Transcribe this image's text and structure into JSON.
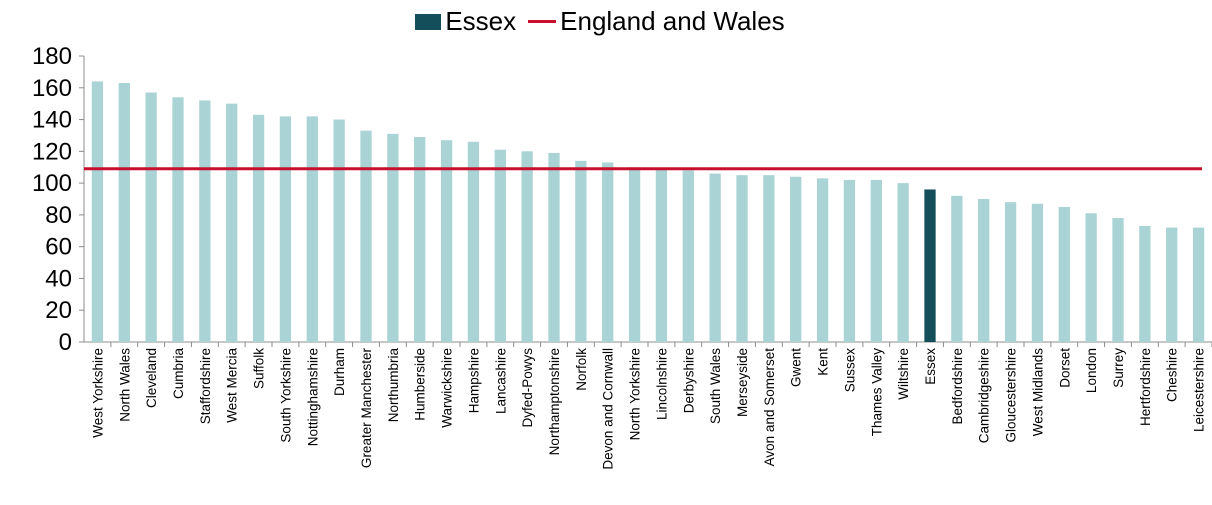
{
  "chart_data": {
    "type": "bar",
    "title": "",
    "xlabel": "",
    "ylabel": "",
    "ylim": [
      0,
      180
    ],
    "yticks": [
      0,
      20,
      40,
      60,
      80,
      100,
      120,
      140,
      160,
      180
    ],
    "grid": false,
    "legend_position": "top-center",
    "categories": [
      "West Yorkshire",
      "North Wales",
      "Cleveland",
      "Cumbria",
      "Staffordshire",
      "West Mercia",
      "Suffolk",
      "South Yorkshire",
      "Nottinghamshire",
      "Durham",
      "Greater Manchester",
      "Northumbria",
      "Humberside",
      "Warwickshire",
      "Hampshire",
      "Lancashire",
      "Dyfed-Powys",
      "Northamptonshire",
      "Norfolk",
      "Devon and Cornwall",
      "North Yorkshire",
      "Lincolnshire",
      "Derbyshire",
      "South Wales",
      "Merseyside",
      "Avon and Somerset",
      "Gwent",
      "Kent",
      "Sussex",
      "Thames Valley",
      "Wiltshire",
      "Essex",
      "Bedfordshire",
      "Cambridgeshire",
      "Gloucestershire",
      "West Midlands",
      "Dorset",
      "London",
      "Surrey",
      "Hertfordshire",
      "Cheshire",
      "Leicestershire"
    ],
    "values": [
      164,
      163,
      157,
      154,
      152,
      150,
      143,
      142,
      142,
      140,
      133,
      131,
      129,
      127,
      126,
      121,
      120,
      119,
      114,
      113,
      110,
      109,
      108,
      106,
      105,
      105,
      104,
      103,
      102,
      102,
      100,
      96,
      92,
      90,
      88,
      87,
      85,
      81,
      78,
      73,
      72,
      72
    ],
    "highlight": {
      "category": "Essex",
      "color": "#134e5a"
    },
    "bar_color": "#a9d3d4",
    "series": [
      {
        "name": "Essex",
        "kind": "bar",
        "color": "#134e5a"
      },
      {
        "name": "England and Wales",
        "kind": "line",
        "value": 109,
        "color": "#c8102e"
      }
    ]
  }
}
